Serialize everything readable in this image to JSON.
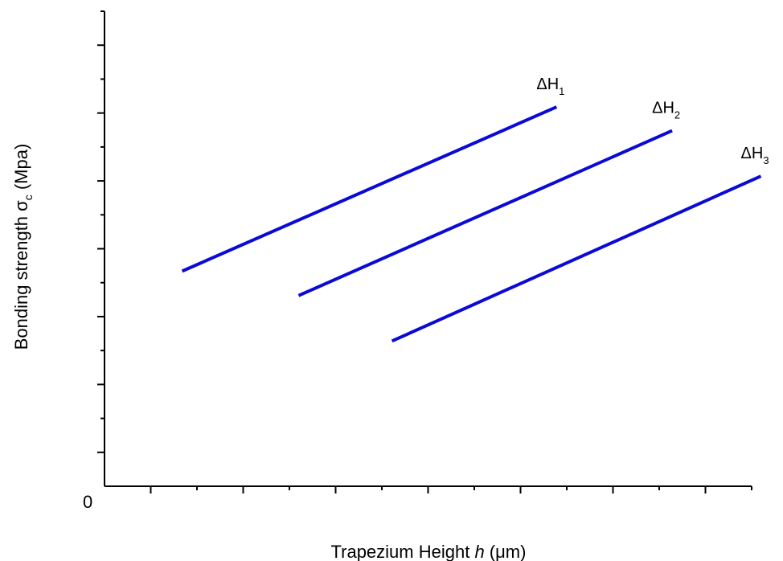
{
  "chart_data": {
    "type": "line",
    "title": "",
    "xlabel": {
      "prefix": "Trapezium Height ",
      "var": "h",
      "unit": " (μm)"
    },
    "ylabel": {
      "prefix": "Bonding strength ",
      "var": "σ",
      "sub": "c",
      "unit": " (Mpa)"
    },
    "origin_label": "0",
    "xlim": [
      0,
      7
    ],
    "ylim": [
      0,
      7
    ],
    "x_ticks": [
      0.5,
      1.5,
      2.5,
      3.5,
      4.5,
      5.5,
      6.5
    ],
    "x_minor_ticks": [
      1,
      2,
      3,
      4,
      5,
      6,
      7
    ],
    "y_ticks": [
      0.5,
      1.5,
      2.5,
      3.5,
      4.5,
      5.5,
      6.5
    ],
    "y_minor_ticks": [
      1,
      2,
      3,
      4,
      5,
      6,
      7
    ],
    "line_color": "#0a0ad6",
    "series": [
      {
        "name": "ΔH",
        "sub": "1",
        "x": [
          0.84,
          4.89
        ],
        "y": [
          3.17,
          5.59
        ]
      },
      {
        "name": "ΔH",
        "sub": "2",
        "x": [
          2.1,
          6.14
        ],
        "y": [
          2.81,
          5.24
        ]
      },
      {
        "name": "ΔH",
        "sub": "3",
        "x": [
          3.11,
          7.1
        ],
        "y": [
          2.14,
          4.57
        ]
      }
    ]
  }
}
